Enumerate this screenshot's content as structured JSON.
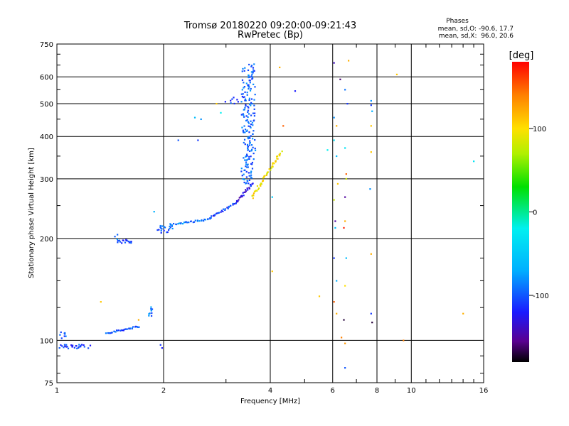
{
  "chart_data": {
    "type": "scatter",
    "title": "Tromsø 20180220 09:20:00-09:21:43",
    "subtitle": "RwPretec (Bp)",
    "xlabel": "Frequency [MHz]",
    "ylabel": "Stationary phase Virtual Height [km]",
    "x_scale": "log",
    "y_scale": "log",
    "xlim": [
      1,
      16
    ],
    "ylim": [
      75,
      750
    ],
    "x_ticks": [
      1,
      2,
      4,
      6,
      8,
      10,
      16
    ],
    "x_tick_labels": [
      "1",
      "2",
      "4",
      "6",
      "8",
      "10",
      "16"
    ],
    "y_ticks": [
      75,
      100,
      200,
      300,
      400,
      500,
      600,
      750
    ],
    "y_tick_labels": [
      "75",
      "100",
      "200",
      "300",
      "400",
      "500",
      "600",
      "750"
    ],
    "grid": true,
    "stats": {
      "heading": "Phases",
      "line_o": "mean, sd,O: -90.6, 17.7",
      "line_x": "mean, sd,X:  96.0, 20.6"
    },
    "colorbar": {
      "label": "[deg]",
      "range": [
        -180,
        180
      ],
      "ticks": [
        100,
        0,
        -100
      ],
      "tick_labels": [
        "100",
        "0",
        "-100"
      ],
      "stops": [
        {
          "v": -180,
          "c": "#000000"
        },
        {
          "v": -155,
          "c": "#5a0090"
        },
        {
          "v": -120,
          "c": "#1a1aff"
        },
        {
          "v": -70,
          "c": "#00b0ff"
        },
        {
          "v": -20,
          "c": "#00f0f0"
        },
        {
          "v": 30,
          "c": "#00e000"
        },
        {
          "v": 70,
          "c": "#b0f000"
        },
        {
          "v": 100,
          "c": "#ffe000"
        },
        {
          "v": 140,
          "c": "#ff8000"
        },
        {
          "v": 180,
          "c": "#ff0000"
        }
      ]
    },
    "series": [
      {
        "traces": [
          {
            "x0": 1.0,
            "x1": 1.25,
            "y0": 97,
            "y1": 95,
            "n": 28,
            "phase": -110,
            "jitter": 0.012
          },
          {
            "x0": 1.0,
            "x1": 1.08,
            "y0": 102,
            "y1": 106,
            "n": 8,
            "phase": -100,
            "jitter": 0.01
          },
          {
            "x0": 1.38,
            "x1": 1.7,
            "y0": 105,
            "y1": 110,
            "n": 32,
            "phase": -105,
            "jitter": 0.01
          },
          {
            "x0": 1.82,
            "x1": 1.87,
            "y0": 125,
            "y1": 118,
            "n": 10,
            "phase": -90,
            "jitter": 0.015
          },
          {
            "x0": 1.45,
            "x1": 1.49,
            "y0": 205,
            "y1": 195,
            "n": 5,
            "phase": -100,
            "jitter": 0.01
          },
          {
            "x0": 1.49,
            "x1": 1.62,
            "y0": 194,
            "y1": 198,
            "n": 16,
            "phase": -105,
            "jitter": 0.008
          },
          {
            "x0": 1.93,
            "x1": 2.12,
            "y0": 210,
            "y1": 220,
            "n": 22,
            "phase": -100,
            "jitter": 0.025
          },
          {
            "x0": 2.12,
            "x1": 2.7,
            "y0": 220,
            "y1": 228,
            "n": 30,
            "phase": -90,
            "jitter": 0.01
          },
          {
            "x0": 2.7,
            "x1": 3.2,
            "y0": 230,
            "y1": 255,
            "n": 28,
            "phase": -110,
            "jitter": 0.012
          },
          {
            "x0": 3.2,
            "x1": 3.55,
            "y0": 255,
            "y1": 290,
            "n": 24,
            "phase": -130,
            "jitter": 0.015
          },
          {
            "x0": 3.35,
            "x1": 3.6,
            "y0": 290,
            "y1": 650,
            "n": 190,
            "phase": -95,
            "jitter": 0.03
          },
          {
            "x0": 3.0,
            "x1": 3.3,
            "y0": 500,
            "y1": 520,
            "n": 8,
            "phase": -110,
            "jitter": 0.01
          },
          {
            "x0": 3.55,
            "x1": 4.3,
            "y0": 265,
            "y1": 360,
            "n": 50,
            "phase": 100,
            "jitter": 0.015
          }
        ]
      },
      {
        "points": [
          [
            2.45,
            455,
            -60
          ],
          [
            2.55,
            450,
            -80
          ],
          [
            2.82,
            500,
            110
          ],
          [
            2.9,
            470,
            -20
          ],
          [
            2.2,
            390,
            -100
          ],
          [
            2.5,
            390,
            -110
          ],
          [
            1.88,
            240,
            -70
          ],
          [
            1.96,
            97,
            -110
          ],
          [
            1.98,
            95,
            -120
          ],
          [
            1.33,
            130,
            110
          ],
          [
            1.7,
            115,
            120
          ],
          [
            4.25,
            640,
            120
          ],
          [
            4.35,
            430,
            150
          ],
          [
            4.05,
            160,
            110
          ],
          [
            4.7,
            545,
            -120
          ],
          [
            5.5,
            135,
            110
          ],
          [
            5.8,
            365,
            -20
          ],
          [
            4.05,
            265,
            -50
          ],
          [
            6.05,
            660,
            -140
          ],
          [
            6.3,
            590,
            -160
          ],
          [
            6.5,
            550,
            -90
          ],
          [
            6.05,
            455,
            -80
          ],
          [
            6.15,
            430,
            120
          ],
          [
            6.05,
            390,
            -30
          ],
          [
            6.15,
            350,
            -60
          ],
          [
            6.2,
            290,
            110
          ],
          [
            6.05,
            260,
            80
          ],
          [
            6.1,
            225,
            -150
          ],
          [
            6.1,
            215,
            -60
          ],
          [
            6.05,
            175,
            -110
          ],
          [
            6.15,
            150,
            -70
          ],
          [
            6.05,
            130,
            150
          ],
          [
            6.15,
            120,
            120
          ],
          [
            6.35,
            102,
            140
          ],
          [
            6.5,
            370,
            -30
          ],
          [
            6.55,
            310,
            150
          ],
          [
            6.55,
            300,
            80
          ],
          [
            6.5,
            265,
            -150
          ],
          [
            6.5,
            225,
            120
          ],
          [
            6.45,
            215,
            170
          ],
          [
            6.55,
            175,
            -60
          ],
          [
            6.5,
            145,
            100
          ],
          [
            6.45,
            115,
            -170
          ],
          [
            6.5,
            98,
            130
          ],
          [
            6.65,
            670,
            120
          ],
          [
            6.5,
            83,
            -100
          ],
          [
            6.6,
            500,
            -110
          ],
          [
            7.7,
            510,
            -80
          ],
          [
            7.7,
            495,
            -110
          ],
          [
            7.75,
            475,
            -70
          ],
          [
            7.7,
            430,
            110
          ],
          [
            7.7,
            360,
            110
          ],
          [
            7.65,
            280,
            -80
          ],
          [
            7.7,
            180,
            120
          ],
          [
            7.7,
            120,
            -110
          ],
          [
            7.75,
            113,
            -170
          ],
          [
            9.1,
            610,
            110
          ],
          [
            9.5,
            100,
            140
          ],
          [
            14.0,
            120,
            120
          ],
          [
            15.0,
            338,
            -30
          ]
        ]
      }
    ]
  }
}
